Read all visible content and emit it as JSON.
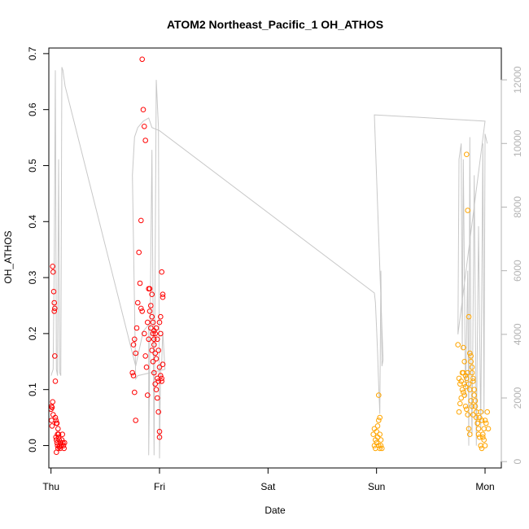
{
  "chart_data": {
    "type": "scatter",
    "title": "ATOM2 Northeast_Pacific_1 OH_ATHOS",
    "xlabel": "Date",
    "ylabel": "OH_ATHOS",
    "x_ticks": [
      "Thu",
      "Fri",
      "Sat",
      "Sun",
      "Mon"
    ],
    "xlim": [
      -0.02,
      4.15
    ],
    "ylim": [
      -0.04,
      0.71
    ],
    "y_ticks": [
      0.0,
      0.1,
      0.2,
      0.3,
      0.4,
      0.5,
      0.6,
      0.7
    ],
    "right_axis": {
      "ylim": [
        -200,
        13000
      ],
      "ticks": [
        0,
        2000,
        4000,
        6000,
        8000,
        10000,
        12000
      ],
      "color": "#b3b3b3"
    },
    "grid": false,
    "legend": "none",
    "colors": {
      "series1": "#ff0000",
      "series2": "#ffa500",
      "altitude": "#c8c8c8",
      "axis": "#000000"
    },
    "series": [
      {
        "values": [
          [
            0.0,
            0.065
          ],
          [
            0.005,
            0.07
          ],
          [
            0.01,
            0.068
          ],
          [
            0.015,
            0.078
          ],
          [
            0.02,
            0.055
          ],
          [
            0.005,
            0.045
          ],
          [
            0.01,
            0.035
          ],
          [
            0.015,
            0.32
          ],
          [
            0.02,
            0.31
          ],
          [
            0.025,
            0.275
          ],
          [
            0.03,
            0.255
          ],
          [
            0.035,
            0.245
          ],
          [
            0.03,
            0.24
          ],
          [
            0.035,
            0.16
          ],
          [
            0.04,
            0.115
          ],
          [
            0.04,
            0.05
          ],
          [
            0.045,
            0.045
          ],
          [
            0.05,
            0.04
          ],
          [
            0.055,
            0.04
          ],
          [
            0.06,
            0.02
          ],
          [
            0.045,
            0.015
          ],
          [
            0.05,
            0.01
          ],
          [
            0.055,
            0.005
          ],
          [
            0.06,
            0.0
          ],
          [
            0.065,
            -0.005
          ],
          [
            0.07,
            0.02
          ],
          [
            0.075,
            0.01
          ],
          [
            0.08,
            0.0
          ],
          [
            0.085,
            -0.005
          ],
          [
            0.09,
            0.005
          ],
          [
            0.095,
            0.0
          ],
          [
            0.1,
            0.01
          ],
          [
            0.105,
            0.02
          ],
          [
            0.11,
            0.005
          ],
          [
            0.115,
            0.0
          ],
          [
            0.12,
            -0.005
          ],
          [
            0.125,
            0.005
          ],
          [
            0.065,
            0.03
          ],
          [
            0.07,
            0.015
          ],
          [
            0.05,
            -0.012
          ],
          [
            0.075,
            -0.002
          ],
          [
            0.75,
            0.13
          ],
          [
            0.76,
            0.125
          ],
          [
            0.77,
            0.095
          ],
          [
            0.78,
            0.045
          ],
          [
            0.76,
            0.18
          ],
          [
            0.77,
            0.19
          ],
          [
            0.78,
            0.165
          ],
          [
            0.79,
            0.21
          ],
          [
            0.8,
            0.255
          ],
          [
            0.81,
            0.345
          ],
          [
            0.82,
            0.29
          ],
          [
            0.83,
            0.245
          ],
          [
            0.84,
            0.24
          ],
          [
            0.83,
            0.402
          ],
          [
            0.85,
            0.6
          ],
          [
            0.86,
            0.57
          ],
          [
            0.87,
            0.545
          ],
          [
            0.84,
            0.69
          ],
          [
            0.86,
            0.2
          ],
          [
            0.87,
            0.16
          ],
          [
            0.88,
            0.14
          ],
          [
            0.89,
            0.22
          ],
          [
            0.9,
            0.28
          ],
          [
            0.91,
            0.28
          ],
          [
            0.92,
            0.21
          ],
          [
            0.93,
            0.17
          ],
          [
            0.94,
            0.15
          ],
          [
            0.95,
            0.13
          ],
          [
            0.96,
            0.11
          ],
          [
            0.89,
            0.09
          ],
          [
            0.9,
            0.19
          ],
          [
            0.91,
            0.24
          ],
          [
            0.92,
            0.25
          ],
          [
            0.93,
            0.27
          ],
          [
            0.94,
            0.2
          ],
          [
            0.95,
            0.205
          ],
          [
            0.96,
            0.2
          ],
          [
            0.97,
            0.21
          ],
          [
            0.98,
            0.19
          ],
          [
            0.99,
            0.17
          ],
          [
            1.0,
            0.22
          ],
          [
            1.01,
            0.23
          ],
          [
            1.0,
            0.14
          ],
          [
            1.01,
            0.125
          ],
          [
            0.97,
            0.1
          ],
          [
            0.98,
            0.085
          ],
          [
            0.99,
            0.06
          ],
          [
            1.0,
            0.025
          ],
          [
            1.0,
            0.015
          ],
          [
            0.95,
            0.18
          ],
          [
            0.96,
            0.165
          ],
          [
            0.97,
            0.155
          ],
          [
            0.98,
            0.12
          ],
          [
            0.99,
            0.115
          ],
          [
            1.02,
            0.31
          ],
          [
            1.03,
            0.265
          ],
          [
            1.03,
            0.27
          ],
          [
            1.01,
            0.2
          ],
          [
            1.02,
            0.12
          ],
          [
            1.03,
            0.145
          ],
          [
            1.02,
            0.115
          ],
          [
            0.93,
            0.23
          ],
          [
            0.94,
            0.22
          ],
          [
            0.95,
            0.19
          ]
        ]
      },
      {
        "values": [
          [
            2.97,
            0.02
          ],
          [
            2.98,
            0.03
          ],
          [
            2.99,
            0.01
          ],
          [
            3.0,
            0.005
          ],
          [
            3.01,
            0.015
          ],
          [
            3.02,
            0.0
          ],
          [
            3.03,
            -0.005
          ],
          [
            2.98,
            0.0
          ],
          [
            2.99,
            -0.005
          ],
          [
            3.0,
            0.025
          ],
          [
            3.01,
            0.035
          ],
          [
            3.02,
            0.045
          ],
          [
            3.03,
            0.05
          ],
          [
            3.02,
            0.09
          ],
          [
            3.04,
            0.0
          ],
          [
            3.05,
            -0.005
          ],
          [
            3.03,
            0.02
          ],
          [
            3.04,
            0.01
          ],
          [
            3.75,
            0.18
          ],
          [
            3.76,
            0.12
          ],
          [
            3.77,
            0.11
          ],
          [
            3.78,
            0.115
          ],
          [
            3.79,
            0.13
          ],
          [
            3.8,
            0.175
          ],
          [
            3.81,
            0.15
          ],
          [
            3.82,
            0.125
          ],
          [
            3.83,
            0.52
          ],
          [
            3.84,
            0.42
          ],
          [
            3.85,
            0.23
          ],
          [
            3.86,
            0.165
          ],
          [
            3.87,
            0.16
          ],
          [
            3.88,
            0.14
          ],
          [
            3.89,
            0.12
          ],
          [
            3.9,
            0.1
          ],
          [
            3.91,
            0.08
          ],
          [
            3.92,
            0.06
          ],
          [
            3.93,
            0.04
          ],
          [
            3.94,
            0.03
          ],
          [
            3.95,
            0.05
          ],
          [
            3.96,
            0.06
          ],
          [
            3.97,
            0.045
          ],
          [
            3.98,
            0.02
          ],
          [
            3.99,
            0.01
          ],
          [
            4.0,
            0.0
          ],
          [
            4.01,
            0.04
          ],
          [
            4.02,
            0.06
          ],
          [
            4.03,
            0.03
          ],
          [
            3.76,
            0.06
          ],
          [
            3.77,
            0.075
          ],
          [
            3.78,
            0.085
          ],
          [
            3.79,
            0.1
          ],
          [
            3.8,
            0.095
          ],
          [
            3.81,
            0.09
          ],
          [
            3.82,
            0.07
          ],
          [
            3.83,
            0.065
          ],
          [
            3.84,
            0.055
          ],
          [
            3.85,
            0.03
          ],
          [
            3.86,
            0.02
          ],
          [
            3.87,
            0.15
          ],
          [
            3.88,
            0.13
          ],
          [
            3.89,
            0.115
          ],
          [
            3.9,
            0.09
          ],
          [
            3.91,
            0.07
          ],
          [
            3.92,
            0.05
          ],
          [
            3.93,
            0.04
          ],
          [
            3.94,
            0.02
          ],
          [
            3.95,
            0.015
          ],
          [
            3.96,
            0.0
          ],
          [
            3.97,
            -0.005
          ],
          [
            3.98,
            0.015
          ],
          [
            3.99,
            0.03
          ],
          [
            4.0,
            0.045
          ],
          [
            3.85,
            0.11
          ],
          [
            3.86,
            0.1
          ],
          [
            3.87,
            0.08
          ],
          [
            3.88,
            0.07
          ],
          [
            3.89,
            0.055
          ],
          [
            3.84,
            0.13
          ],
          [
            3.83,
            0.12
          ],
          [
            3.82,
            0.105
          ],
          [
            3.81,
            0.11
          ],
          [
            3.8,
            0.13
          ]
        ]
      }
    ],
    "altitude_trace": {
      "points": [
        [
          0.0,
          2700
        ],
        [
          0.02,
          2900
        ],
        [
          0.03,
          6500
        ],
        [
          0.04,
          12300
        ],
        [
          0.045,
          7000
        ],
        [
          0.05,
          2900
        ],
        [
          0.06,
          2700
        ],
        [
          0.07,
          9500
        ],
        [
          0.08,
          2800
        ],
        [
          0.09,
          2700
        ],
        [
          0.1,
          12400
        ],
        [
          0.11,
          12300
        ],
        [
          0.13,
          11800
        ],
        [
          0.78,
          3000
        ],
        [
          0.85,
          4100
        ],
        [
          0.9,
          4300
        ],
        [
          0.9,
          200
        ],
        [
          0.93,
          9800
        ],
        [
          0.95,
          200
        ],
        [
          0.97,
          12000
        ],
        [
          0.99,
          10500
        ],
        [
          1.0,
          100
        ],
        [
          1.01,
          3000
        ],
        [
          1.02,
          3100
        ],
        [
          1.03,
          4100
        ],
        [
          1.05,
          2900
        ],
        [
          0.8,
          2700
        ],
        [
          0.78,
          2600
        ],
        [
          0.75,
          9000
        ],
        [
          0.77,
          10200
        ],
        [
          0.8,
          10500
        ],
        [
          0.85,
          10700
        ],
        [
          0.9,
          10800
        ],
        [
          0.93,
          10500
        ],
        [
          1.0,
          10400
        ],
        [
          2.98,
          5300
        ],
        [
          2.99,
          5000
        ],
        [
          3.0,
          4200
        ],
        [
          3.01,
          3400
        ],
        [
          3.02,
          2400
        ],
        [
          3.03,
          1500
        ],
        [
          3.04,
          6000
        ],
        [
          3.05,
          3000
        ],
        [
          3.06,
          3200
        ],
        [
          2.98,
          10900
        ],
        [
          3.5,
          10800
        ],
        [
          4.0,
          10700
        ],
        [
          3.75,
          4000
        ],
        [
          3.76,
          9500
        ],
        [
          3.78,
          10000
        ],
        [
          3.79,
          3500
        ],
        [
          3.8,
          9500
        ],
        [
          3.82,
          2000
        ],
        [
          3.84,
          6000
        ],
        [
          3.85,
          500
        ],
        [
          3.86,
          10200
        ],
        [
          3.87,
          3000
        ],
        [
          3.88,
          800
        ],
        [
          3.9,
          9000
        ],
        [
          3.92,
          500
        ],
        [
          3.94,
          7400
        ],
        [
          3.96,
          1000
        ],
        [
          3.98,
          10000
        ],
        [
          3.99,
          1500
        ],
        [
          4.0,
          10300
        ],
        [
          4.02,
          10000
        ]
      ]
    }
  }
}
